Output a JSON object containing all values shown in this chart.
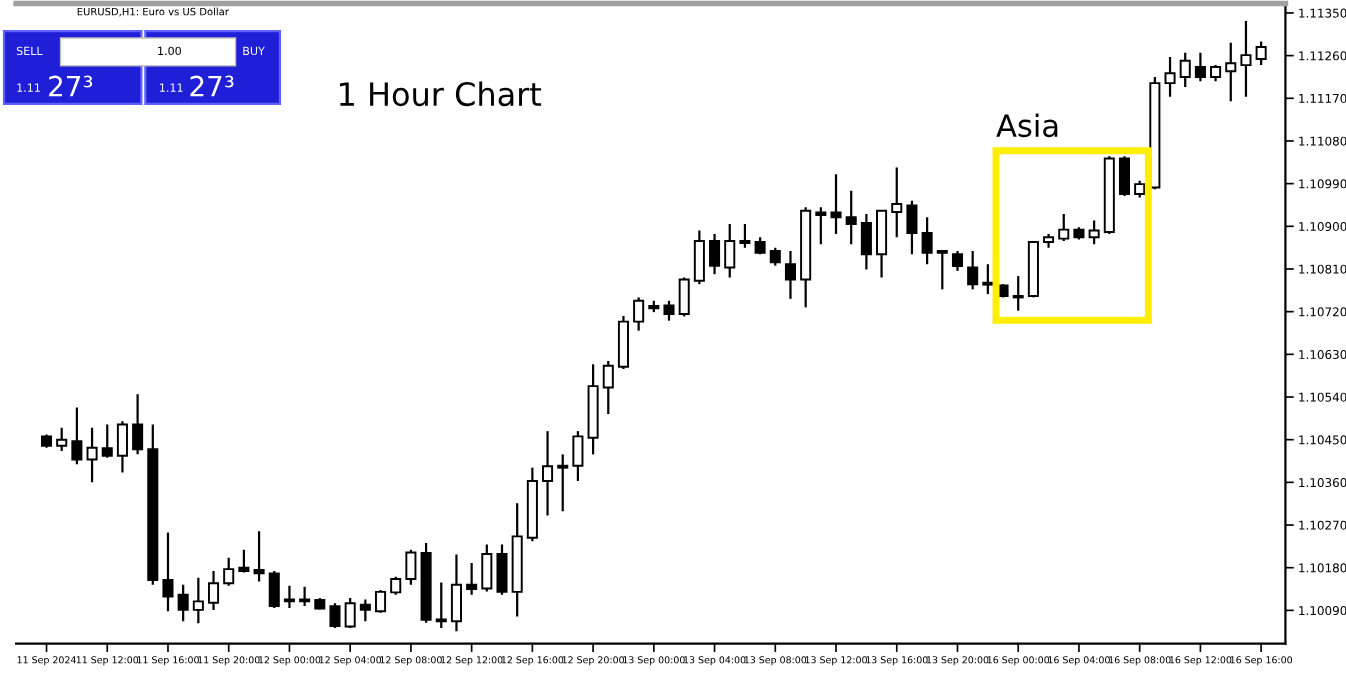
{
  "chart_data": {
    "type": "candlestick",
    "title": "1 Hour Chart",
    "subtitle": "EURUSD,H1: Euro vs US Dollar",
    "annotations": [
      "Asia",
      "SELL",
      "1.00",
      "BUY",
      "1.11",
      "27³",
      "1.11",
      "27³"
    ],
    "categories": [
      "11 Sep 2024",
      null,
      null,
      null,
      "11 Sep 12:00",
      null,
      null,
      null,
      "11 Sep 16:00",
      null,
      null,
      null,
      "11 Sep 20:00",
      null,
      null,
      null,
      "12 Sep 00:00",
      null,
      null,
      null,
      "12 Sep 04:00",
      null,
      null,
      null,
      "12 Sep 08:00",
      null,
      null,
      null,
      "12 Sep 12:00",
      null,
      null,
      null,
      "12 Sep 16:00",
      null,
      null,
      null,
      "12 Sep 20:00",
      null,
      null,
      null,
      "13 Sep 00:00",
      null,
      null,
      null,
      "13 Sep 04:00",
      null,
      null,
      null,
      "13 Sep 08:00",
      null,
      null,
      null,
      "13 Sep 12:00",
      null,
      null,
      null,
      "13 Sep 16:00",
      null,
      null,
      null,
      "13 Sep 20:00",
      null,
      null,
      null,
      "16 Sep 00:00",
      null,
      null,
      null,
      "16 Sep 04:00",
      null,
      null,
      null,
      "16 Sep 08:00",
      null,
      null,
      null,
      "16 Sep 12:00",
      null,
      null,
      null,
      "16 Sep 16:00"
    ],
    "ohlc": [
      [
        1.10457,
        1.10461,
        1.10433,
        1.10437
      ],
      [
        1.10437,
        1.10475,
        1.10426,
        1.1045
      ],
      [
        1.10447,
        1.10518,
        1.10398,
        1.10408
      ],
      [
        1.10408,
        1.10475,
        1.1036,
        1.10433
      ],
      [
        1.10432,
        1.10482,
        1.10412,
        1.10416
      ],
      [
        1.10416,
        1.10489,
        1.10381,
        1.10482
      ],
      [
        1.10482,
        1.10546,
        1.10419,
        1.1043
      ],
      [
        1.1043,
        1.10482,
        1.10144,
        1.10154
      ],
      [
        1.10154,
        1.10254,
        1.10088,
        1.10119
      ],
      [
        1.10123,
        1.10144,
        1.10067,
        1.10091
      ],
      [
        1.10091,
        1.10159,
        1.10063,
        1.10109
      ],
      [
        1.10106,
        1.10173,
        1.10091,
        1.10147
      ],
      [
        1.10147,
        1.10201,
        1.10142,
        1.10177
      ],
      [
        1.1018,
        1.10218,
        1.1017,
        1.10173
      ],
      [
        1.10175,
        1.10257,
        1.10151,
        1.10168
      ],
      [
        1.10168,
        1.10173,
        1.10095,
        1.10099
      ],
      [
        1.10113,
        1.10142,
        1.10095,
        1.10109
      ],
      [
        1.10113,
        1.1014,
        1.10099,
        1.10109
      ],
      [
        1.10112,
        1.10116,
        1.10092,
        1.10094
      ],
      [
        1.10099,
        1.10105,
        1.10053,
        1.10057
      ],
      [
        1.10056,
        1.10116,
        1.10053,
        1.10105
      ],
      [
        1.10102,
        1.10113,
        1.10067,
        1.10091
      ],
      [
        1.10088,
        1.10133,
        1.10085,
        1.10129
      ],
      [
        1.10128,
        1.10161,
        1.10123,
        1.10156
      ],
      [
        1.10156,
        1.10218,
        1.10144,
        1.10212
      ],
      [
        1.10211,
        1.10232,
        1.10064,
        1.1007
      ],
      [
        1.10071,
        1.10149,
        1.10053,
        1.10067
      ],
      [
        1.10067,
        1.10208,
        1.10046,
        1.10144
      ],
      [
        1.10144,
        1.1019,
        1.10123,
        1.10135
      ],
      [
        1.10136,
        1.10229,
        1.1013,
        1.10209
      ],
      [
        1.10209,
        1.10229,
        1.10123,
        1.10129
      ],
      [
        1.10129,
        1.10316,
        1.10077,
        1.10246
      ],
      [
        1.10243,
        1.10391,
        1.10236,
        1.10363
      ],
      [
        1.10363,
        1.10468,
        1.1029,
        1.10394
      ],
      [
        1.10395,
        1.10419,
        1.10299,
        1.10391
      ],
      [
        1.10395,
        1.10468,
        1.10363,
        1.10457
      ],
      [
        1.10454,
        1.10609,
        1.10419,
        1.10563
      ],
      [
        1.1056,
        1.10616,
        1.10504,
        1.10606
      ],
      [
        1.10604,
        1.10711,
        1.10599,
        1.10699
      ],
      [
        1.10699,
        1.1075,
        1.1068,
        1.10743
      ],
      [
        1.10732,
        1.10743,
        1.10719,
        1.10727
      ],
      [
        1.10733,
        1.10743,
        1.10701,
        1.10715
      ],
      [
        1.10715,
        1.10792,
        1.1071,
        1.10788
      ],
      [
        1.10785,
        1.10891,
        1.10778,
        1.10869
      ],
      [
        1.10869,
        1.10884,
        1.10799,
        1.10817
      ],
      [
        1.10813,
        1.10905,
        1.10792,
        1.10869
      ],
      [
        1.10869,
        1.10905,
        1.10855,
        1.10865
      ],
      [
        1.10867,
        1.10877,
        1.10841,
        1.10844
      ],
      [
        1.10848,
        1.10855,
        1.10817,
        1.10824
      ],
      [
        1.1082,
        1.10848,
        1.10747,
        1.10788
      ],
      [
        1.10788,
        1.1094,
        1.10729,
        1.10933
      ],
      [
        1.10929,
        1.1094,
        1.10862,
        1.10924
      ],
      [
        1.10929,
        1.1101,
        1.10884,
        1.10919
      ],
      [
        1.10919,
        1.10975,
        1.10862,
        1.10905
      ],
      [
        1.10907,
        1.10926,
        1.10809,
        1.10841
      ],
      [
        1.10841,
        1.10933,
        1.10792,
        1.10933
      ],
      [
        1.1093,
        1.11024,
        1.10877,
        1.10947
      ],
      [
        1.10944,
        1.10954,
        1.10841,
        1.10886
      ],
      [
        1.10886,
        1.10919,
        1.1082,
        1.10844
      ],
      [
        1.10848,
        1.10848,
        1.10767,
        1.10844
      ],
      [
        1.10841,
        1.10848,
        1.10806,
        1.10816
      ],
      [
        1.10813,
        1.10848,
        1.10767,
        1.10778
      ],
      [
        1.10781,
        1.1082,
        1.10757,
        1.10777
      ],
      [
        1.10775,
        1.10778,
        1.1075,
        1.10753
      ],
      [
        1.10753,
        1.10795,
        1.10722,
        1.1075
      ],
      [
        1.10753,
        1.10869,
        1.1075,
        1.10867
      ],
      [
        1.10867,
        1.10884,
        1.10855,
        1.10877
      ],
      [
        1.10874,
        1.10926,
        1.10869,
        1.10893
      ],
      [
        1.10893,
        1.10898,
        1.10872,
        1.10877
      ],
      [
        1.10877,
        1.10912,
        1.10862,
        1.10891
      ],
      [
        1.10888,
        1.11048,
        1.10884,
        1.11043
      ],
      [
        1.11043,
        1.11048,
        1.10964,
        1.10968
      ],
      [
        1.10968,
        1.10996,
        1.10961,
        1.10989
      ],
      [
        1.10982,
        1.11215,
        1.10978,
        1.11202
      ],
      [
        1.11202,
        1.11257,
        1.11173,
        1.11223
      ],
      [
        1.11215,
        1.11266,
        1.11194,
        1.11249
      ],
      [
        1.11236,
        1.11266,
        1.11206,
        1.11215
      ],
      [
        1.11215,
        1.1124,
        1.11206,
        1.11236
      ],
      [
        1.11227,
        1.11287,
        1.11164,
        1.11244
      ],
      [
        1.1124,
        1.11333,
        1.11173,
        1.11261
      ],
      [
        1.11253,
        1.1129,
        1.1124,
        1.11278
      ]
    ],
    "ylim": [
      1.1002,
      1.1137
    ],
    "yticks": [
      {
        "value": 1.1009,
        "label": "1.10090"
      },
      {
        "value": 1.1018,
        "label": "1.10180"
      },
      {
        "value": 1.1027,
        "label": "1.10270"
      },
      {
        "value": 1.1036,
        "label": "1.10360"
      },
      {
        "value": 1.1045,
        "label": "1.10450"
      },
      {
        "value": 1.1054,
        "label": "1.10540"
      },
      {
        "value": 1.1063,
        "label": "1.10630"
      },
      {
        "value": 1.1072,
        "label": "1.10720"
      },
      {
        "value": 1.1081,
        "label": "1.10810"
      },
      {
        "value": 1.109,
        "label": "1.10900"
      },
      {
        "value": 1.1099,
        "label": "1.10990"
      },
      {
        "value": 1.1108,
        "label": "1.11080"
      },
      {
        "value": 1.1117,
        "label": "1.11170"
      },
      {
        "value": 1.1126,
        "label": "1.11260"
      },
      {
        "value": 1.1135,
        "label": "1.11350"
      }
    ],
    "grid": false
  }
}
